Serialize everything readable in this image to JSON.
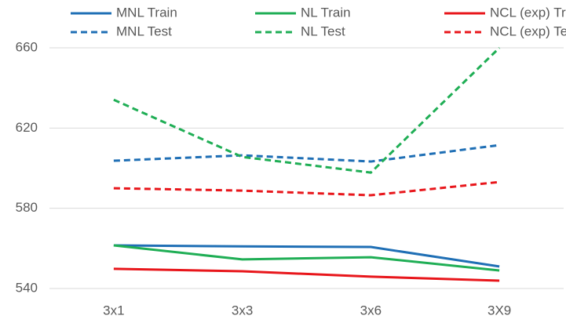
{
  "chart_data": {
    "type": "line",
    "categories": [
      "3x1",
      "3x3",
      "3x6",
      "3X9"
    ],
    "series": [
      {
        "name": "MNL Train",
        "color": "#1f6fb5",
        "dashed": false,
        "values": [
          561.5,
          561,
          560.7,
          551
        ]
      },
      {
        "name": "NL Train",
        "color": "#1fae55",
        "dashed": false,
        "values": [
          561.5,
          554.5,
          555.6,
          549
        ]
      },
      {
        "name": "NCL (exp) Train",
        "color": "#e8161b",
        "dashed": false,
        "values": [
          549.8,
          548.6,
          545.9,
          543.9
        ]
      },
      {
        "name": "MNL Test",
        "color": "#1f6fb5",
        "dashed": true,
        "values": [
          603.7,
          606.4,
          603.3,
          611.5
        ]
      },
      {
        "name": "NL Test",
        "color": "#1fae55",
        "dashed": true,
        "values": [
          634.1,
          605.6,
          597.8,
          660
        ]
      },
      {
        "name": "NCL (exp) Test",
        "color": "#e8161b",
        "dashed": true,
        "values": [
          590,
          588.8,
          586.5,
          593.1
        ]
      }
    ],
    "ylim": [
      540,
      660
    ],
    "yticks": [
      540,
      580,
      620,
      660
    ],
    "grid": true,
    "legend": "top"
  }
}
